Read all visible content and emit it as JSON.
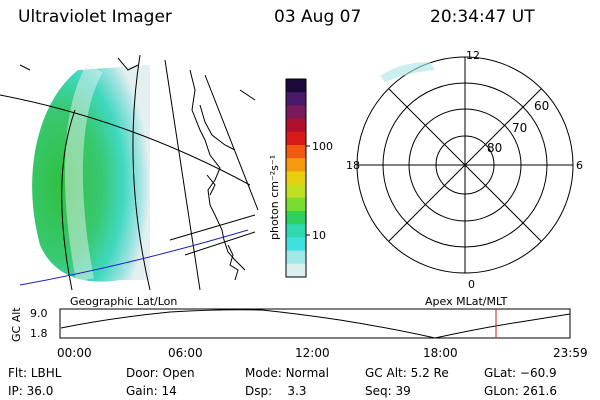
{
  "header": {
    "instrument": "Ultraviolet Imager",
    "date": "03 Aug 07",
    "time": "20:34:47 UT"
  },
  "colorbar": {
    "unit_label": "photon cm⁻²s⁻¹",
    "ticks": [
      "100",
      "10"
    ],
    "colors": [
      "#1a0a3a",
      "#4a1a6a",
      "#7a1a5a",
      "#b01030",
      "#d81a18",
      "#f05a10",
      "#f59a10",
      "#e8d010",
      "#c0e020",
      "#7adc30",
      "#30d060",
      "#30d8b0",
      "#40e0e0",
      "#a0e8e8",
      "#dcefef"
    ]
  },
  "polar": {
    "mlt_labels": {
      "top": "12",
      "left": "18",
      "right": "6",
      "bottom": "0"
    },
    "lat_labels": [
      "60",
      "70",
      "80"
    ]
  },
  "timeline": {
    "y_label": "GC Alt",
    "y_ticks": [
      "9.0",
      "1.8"
    ],
    "x_ticks": [
      "00:00",
      "06:00",
      "12:00",
      "18:00",
      "23:59"
    ],
    "left_caption": "Geographic Lat/Lon",
    "right_caption": "Apex MLat/MLT",
    "marker_color": "#cc2020"
  },
  "status": {
    "flt_label": "Flt:",
    "flt_value": "LBHL",
    "ip_label": "IP:",
    "ip_value": "36.0",
    "door_label": "Door:",
    "door_value": "Open",
    "gain_label": "Gain:",
    "gain_value": "14",
    "mode_label": "Mode:",
    "mode_value": "Normal",
    "dsp_label": "Dsp:",
    "dsp_value": "3.3",
    "gcalt_label": "GC Alt:",
    "gcalt_value": "5.2 Re",
    "seq_label": "Seq:",
    "seq_value": "39",
    "glat_label": "GLat:",
    "glat_value": "−60.9",
    "glon_label": "GLon:",
    "glon_value": "261.6"
  }
}
